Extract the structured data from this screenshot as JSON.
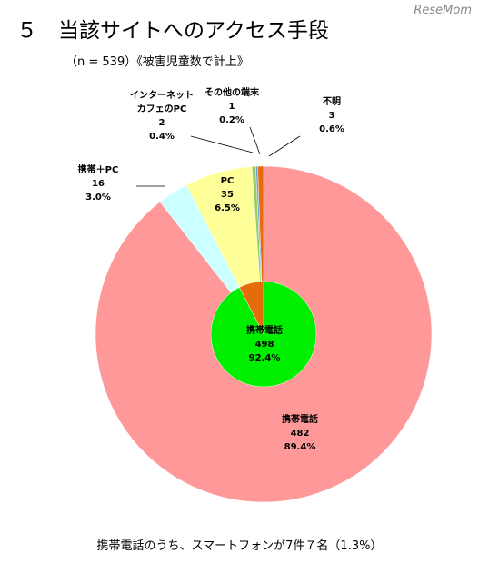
{
  "chart_data": [
    {
      "type": "pie",
      "title": "５　当該サイトへのアクセス手段",
      "subtitle": "（n = 539）《被害児童数で計上》",
      "watermark": "ReseMom",
      "note": "携帯電話のうち、スマートフォンが7件７名（1.3%）",
      "categories": [
        "携帯電話",
        "携帯＋PC",
        "PC",
        "インターネット\nカフェのPC",
        "その他の端末",
        "不明"
      ],
      "values": [
        482,
        16,
        35,
        2,
        1,
        3
      ],
      "shares": [
        89.4,
        3.0,
        6.5,
        0.4,
        0.2,
        0.6
      ],
      "share_labels": [
        "89.4%",
        "3.0%",
        "6.5%",
        "0.4%",
        "0.2%",
        "0.6%"
      ],
      "colors": [
        "#ff9999",
        "#ccffff",
        "#ffff99",
        "#99cc66",
        "#6699cc",
        "#e46c0a"
      ]
    },
    {
      "type": "pie",
      "categories": [
        "携帯電話",
        null
      ],
      "values": [
        498,
        41
      ],
      "shares": [
        92.4,
        null
      ],
      "share_labels": [
        "92.4%",
        null
      ],
      "colors": [
        "#00ee00",
        "#e46c0a"
      ]
    }
  ]
}
